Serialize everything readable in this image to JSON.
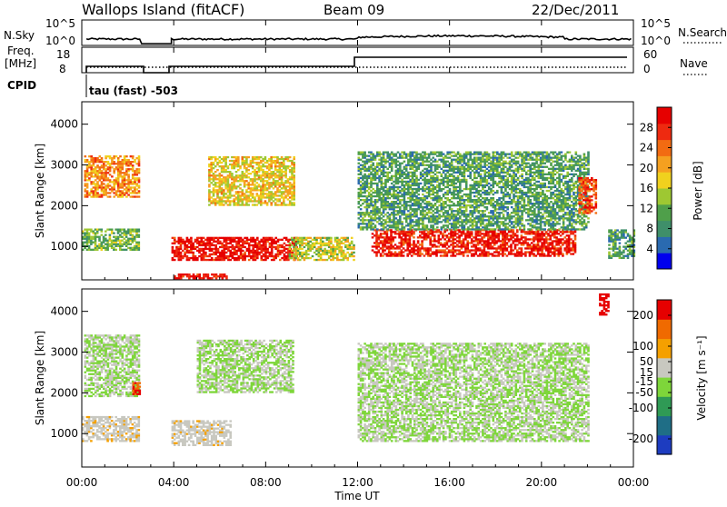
{
  "header": {
    "station": "Wallops Island (fitACF)",
    "beam": "Beam 09",
    "date": "22/Dec/2011"
  },
  "top_panels": {
    "nsky_label": "N.Sky",
    "nsky_ticks": [
      "10^5",
      "10^0"
    ],
    "nsearch_label": "N.Search",
    "nsearch_ticks": [
      "10^5",
      "10^0"
    ],
    "freq_label_line1": "Freq.",
    "freq_label_line2": "[MHz]",
    "freq_ticks": [
      "18",
      "8"
    ],
    "nave_label": "Nave",
    "nave_ticks": [
      "60",
      "0"
    ],
    "cpid_label": "CPID",
    "cpid_text": "tau (fast) -503"
  },
  "x_axis": {
    "ticks": [
      "00:00",
      "04:00",
      "08:00",
      "12:00",
      "16:00",
      "20:00",
      "00:00"
    ],
    "label": "Time UT"
  },
  "power_panel": {
    "ylabel": "Slant Range [km]",
    "yticks": [
      "4000",
      "3000",
      "2000",
      "1000"
    ],
    "colorbar_label": "Power [dB]",
    "colorbar_ticks": [
      "28",
      "24",
      "20",
      "16",
      "12",
      "8",
      "4"
    ],
    "colors": [
      "#0000ee",
      "#2a6ab0",
      "#3f8f6a",
      "#4f9f4a",
      "#9ec832",
      "#f0d11e",
      "#f5a020",
      "#f26b12",
      "#ee2a10",
      "#e60000"
    ]
  },
  "velocity_panel": {
    "ylabel": "Slant Range [km]",
    "yticks": [
      "4000",
      "3000",
      "2000",
      "1000"
    ],
    "colorbar_label": "Velocity [m s⁻¹]",
    "colorbar_ticks": [
      "200",
      "100",
      "50",
      "15",
      "-15",
      "-50",
      "-100",
      "-200"
    ],
    "colors": [
      "#1d3cc0",
      "#1f6e86",
      "#2f9a55",
      "#7ed63a",
      "#c8c8c0",
      "#f5a000",
      "#f06a00",
      "#e60000"
    ]
  },
  "chart_data": [
    {
      "type": "heatmap",
      "title": "Power",
      "xlabel": "Time UT",
      "ylabel": "Slant Range [km]",
      "xlim": [
        0,
        24
      ],
      "ylim": [
        180,
        4550
      ],
      "colorbar_range": [
        0,
        32
      ],
      "regions": [
        {
          "t": [
            0.1,
            2.5
          ],
          "r": [
            2200,
            3200
          ],
          "value": 22
        },
        {
          "t": [
            0.0,
            2.5
          ],
          "r": [
            900,
            1400
          ],
          "value": 12
        },
        {
          "t": [
            3.9,
            9.3
          ],
          "r": [
            650,
            1200
          ],
          "value": 30
        },
        {
          "t": [
            4.0,
            6.3
          ],
          "r": [
            200,
            330
          ],
          "value": 30
        },
        {
          "t": [
            5.5,
            9.2
          ],
          "r": [
            2000,
            3200
          ],
          "value": 18
        },
        {
          "t": [
            9.0,
            11.8
          ],
          "r": [
            650,
            1200
          ],
          "value": 16
        },
        {
          "t": [
            12.6,
            21.5
          ],
          "r": [
            750,
            1400
          ],
          "value": 29
        },
        {
          "t": [
            12.0,
            22.0
          ],
          "r": [
            1400,
            3300
          ],
          "value": 10
        },
        {
          "t": [
            21.6,
            22.4
          ],
          "r": [
            1800,
            2700
          ],
          "value": 26
        },
        {
          "t": [
            22.9,
            24.0
          ],
          "r": [
            700,
            1400
          ],
          "value": 10
        }
      ]
    },
    {
      "type": "heatmap",
      "title": "Velocity",
      "xlabel": "Time UT",
      "ylabel": "Slant Range [km]",
      "xlim": [
        0,
        24
      ],
      "ylim": [
        180,
        4550
      ],
      "colorbar_range": [
        -250,
        250
      ],
      "regions": [
        {
          "t": [
            0.1,
            2.5
          ],
          "r": [
            1900,
            3400
          ],
          "value": 0
        },
        {
          "t": [
            2.2,
            2.5
          ],
          "r": [
            1950,
            2300
          ],
          "value": 180
        },
        {
          "t": [
            0.0,
            2.5
          ],
          "r": [
            800,
            1400
          ],
          "value": 40
        },
        {
          "t": [
            3.9,
            6.5
          ],
          "r": [
            700,
            1300
          ],
          "value": 40
        },
        {
          "t": [
            5.0,
            9.2
          ],
          "r": [
            2000,
            3300
          ],
          "value": 0
        },
        {
          "t": [
            12.0,
            22.0
          ],
          "r": [
            800,
            3200
          ],
          "value": 0
        },
        {
          "t": [
            22.5,
            22.9
          ],
          "r": [
            3900,
            4400
          ],
          "value": 230
        }
      ]
    }
  ]
}
